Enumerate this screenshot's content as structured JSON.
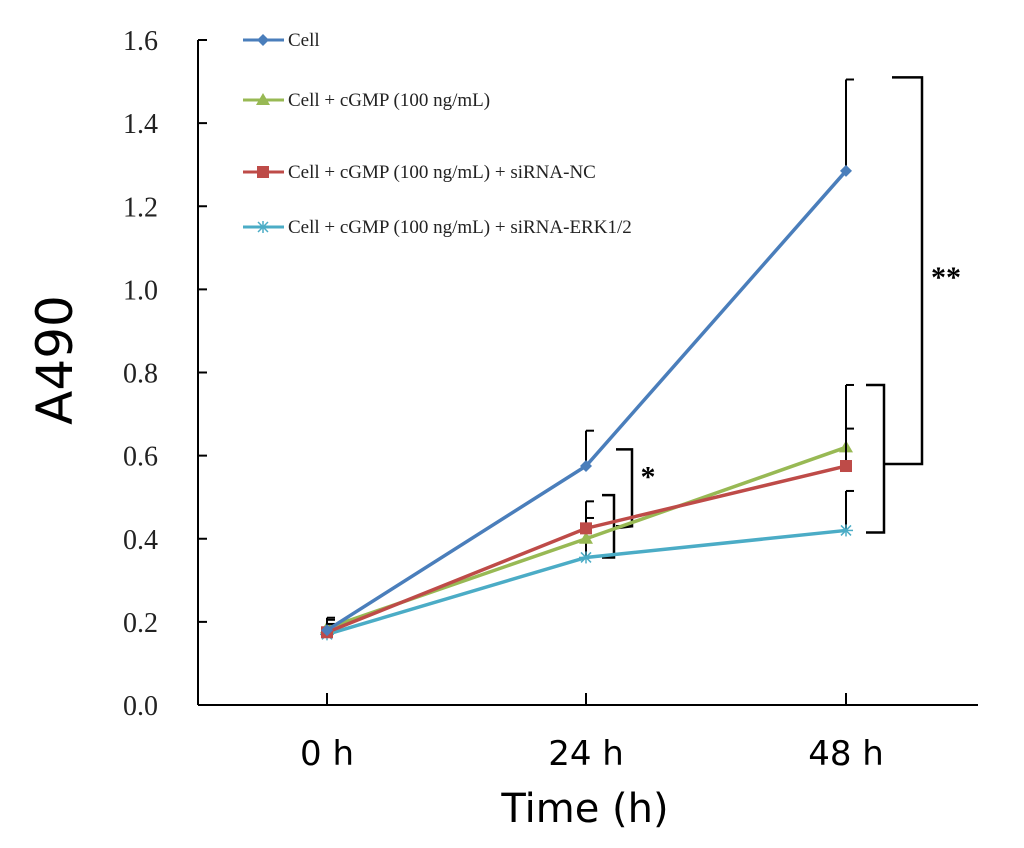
{
  "chart_data": {
    "type": "line",
    "title": "",
    "xlabel": "Time (h)",
    "ylabel": "A490",
    "categories": [
      "0 h",
      "24 h",
      "48 h"
    ],
    "ylim": [
      0.0,
      1.6
    ],
    "yticks": [
      "0.0",
      "0.2",
      "0.4",
      "0.6",
      "0.8",
      "1.0",
      "1.2",
      "1.4",
      "1.6"
    ],
    "grid": false,
    "legend_position": "top-left",
    "series": [
      {
        "name": "Cell",
        "color": "#4a7ebb",
        "marker": "diamond",
        "values": [
          0.18,
          0.575,
          1.285
        ],
        "errors": [
          0.03,
          0.085,
          0.22
        ]
      },
      {
        "name": "Cell + cGMP (100 ng/mL)",
        "color": "#98b954",
        "marker": "triangle",
        "values": [
          0.185,
          0.4,
          0.62
        ],
        "errors": [
          0.02,
          0.05,
          0.15
        ]
      },
      {
        "name": "Cell + cGMP (100 ng/mL)  + siRNA-NC",
        "color": "#be4b48",
        "marker": "square",
        "values": [
          0.175,
          0.425,
          0.575
        ],
        "errors": [
          0.02,
          0.065,
          0.09
        ]
      },
      {
        "name": "Cell + cGMP (100 ng/mL) + siRNA-ERK1/2",
        "color": "#4bacc6",
        "marker": "star",
        "values": [
          0.17,
          0.355,
          0.42
        ],
        "errors": [
          0.02,
          0.05,
          0.095
        ]
      }
    ],
    "annotations": [
      "*",
      "**"
    ]
  }
}
